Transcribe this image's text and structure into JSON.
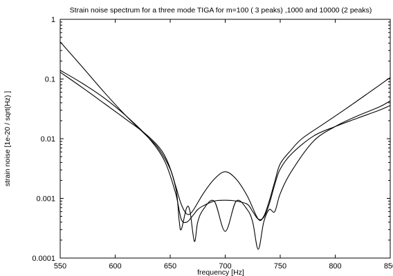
{
  "chart_data": {
    "type": "line",
    "title": "Strain noise spectrum for a three mode TIGA for m=100 ( 3 peaks) ,1000 and 10000 (2 peaks)",
    "xlabel": "frequency [Hz]",
    "ylabel": "strain noise [1e-20 / sqrt(Hz) ]",
    "xlim": [
      550,
      850
    ],
    "ylim": [
      0.0001,
      1
    ],
    "yscale": "log",
    "grid": false,
    "x_ticks": [
      550,
      600,
      650,
      700,
      750,
      800,
      850
    ],
    "x_tick_labels": [
      "550",
      "600",
      "650",
      "700",
      "750",
      "800",
      "850"
    ],
    "y_ticks": [
      0.0001,
      0.001,
      0.01,
      0.1,
      1
    ],
    "y_tick_labels": [
      "0.0001",
      "0.001",
      "0.01",
      "0.1",
      "1"
    ],
    "line_color": "#000000",
    "series": [
      {
        "x": [
          550,
          570,
          590,
          610,
          630,
          645,
          655,
          660,
          665,
          670,
          675,
          680,
          690,
          700,
          710,
          720,
          725,
          730,
          735,
          740,
          745,
          750,
          760,
          780,
          800,
          820,
          840,
          850
        ],
        "y": [
          0.14,
          0.085,
          0.048,
          0.024,
          0.0105,
          0.0042,
          0.0012,
          0.00045,
          0.0004,
          0.0005,
          0.00065,
          0.00075,
          0.0009,
          0.00093,
          0.0009,
          0.0008,
          0.0006,
          0.00045,
          0.00048,
          0.0008,
          0.0017,
          0.0031,
          0.0055,
          0.011,
          0.016,
          0.022,
          0.03,
          0.036
        ]
      },
      {
        "x": [
          550,
          570,
          590,
          610,
          630,
          645,
          655,
          658,
          660,
          665,
          668,
          672,
          675,
          680,
          690,
          700,
          710,
          720,
          725,
          730,
          735,
          740,
          745,
          750,
          760,
          780,
          800,
          820,
          840,
          850
        ],
        "y": [
          0.13,
          0.072,
          0.039,
          0.021,
          0.011,
          0.0052,
          0.0015,
          0.00045,
          0.0003,
          0.0007,
          0.0006,
          0.00019,
          0.0004,
          0.00065,
          0.0009,
          0.00028,
          0.0009,
          0.00065,
          0.0004,
          0.00014,
          0.0004,
          0.00065,
          0.0006,
          0.0012,
          0.0028,
          0.009,
          0.016,
          0.024,
          0.034,
          0.043
        ]
      },
      {
        "x": [
          550,
          570,
          590,
          610,
          630,
          640,
          650,
          655,
          660,
          665,
          670,
          680,
          690,
          700,
          710,
          720,
          730,
          735,
          740,
          745,
          750,
          760,
          770,
          790,
          810,
          830,
          850
        ],
        "y": [
          0.42,
          0.16,
          0.06,
          0.024,
          0.0105,
          0.0066,
          0.0031,
          0.0016,
          0.0008,
          0.00055,
          0.0006,
          0.0012,
          0.0021,
          0.0028,
          0.0021,
          0.0011,
          0.00045,
          0.0005,
          0.0009,
          0.0019,
          0.0038,
          0.0065,
          0.0101,
          0.018,
          0.032,
          0.058,
          0.106
        ]
      }
    ]
  }
}
